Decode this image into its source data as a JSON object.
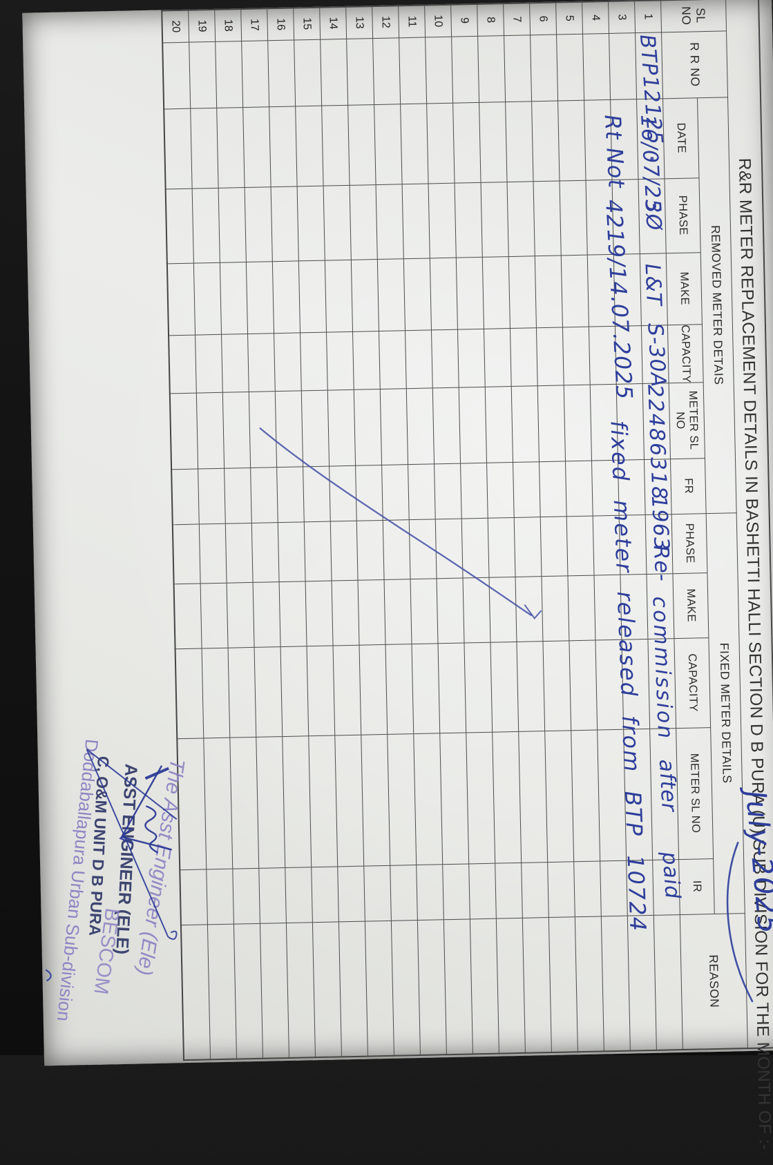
{
  "document": {
    "title_prefix": "R&R METER REPLACEMENT DETAILS IN BASHETTI HALLI SECTION D B PURA (U)  SUB DIVISION FOR THE MONTH OF :-",
    "title_month_handwritten": "July-2025",
    "group_removed": "REMOVED METER DETAIS",
    "group_fixed": "FIXED METER DETAILS",
    "columns": [
      "SL NO",
      "R R NO",
      "DATE",
      "PHASE",
      "MAKE",
      "CAPACITY",
      "METER SL NO",
      "FR",
      "PHASE",
      "MAKE",
      "CAPACITY",
      "METER SL NO",
      "IR",
      "REASON"
    ],
    "sl_numbers": [
      "1",
      "3",
      "4",
      "5",
      "6",
      "7",
      "8",
      "9",
      "10",
      "11",
      "12",
      "13",
      "14",
      "15",
      "16",
      "17",
      "18",
      "19",
      "20"
    ],
    "row1": {
      "sl": "1",
      "rr_no": "BTP12125",
      "date": "16/07/25",
      "phase": "3Ø",
      "make": "L&T",
      "capacity": "S-30A",
      "meter_sl_no": "22486318",
      "fr": "1963",
      "fixed_note_part1": "Re-",
      "fixed_note_part2": "commission",
      "fixed_note_part3": "after",
      "fixed_note_part4": "paid"
    },
    "note_line2": {
      "receipt": "Rt Not",
      "number": "4219/14.07.2025",
      "remark": "fixed meter released from BTP 10724"
    },
    "stamp": {
      "sig_line": "The Asst Engineer (Ele)",
      "stamp_line1": "ASST ENGINEER (ELE)",
      "stamp_line2": "C, O&M UNIT D B PURA",
      "stamp_bescom": "BESCOM",
      "stamp_line3": "Doddaballapura Urban Sub-division"
    },
    "ink_color": "#2e3e9b",
    "stamp_violet_color": "#8c80c2",
    "stamp_dark_color": "#3d4570"
  }
}
